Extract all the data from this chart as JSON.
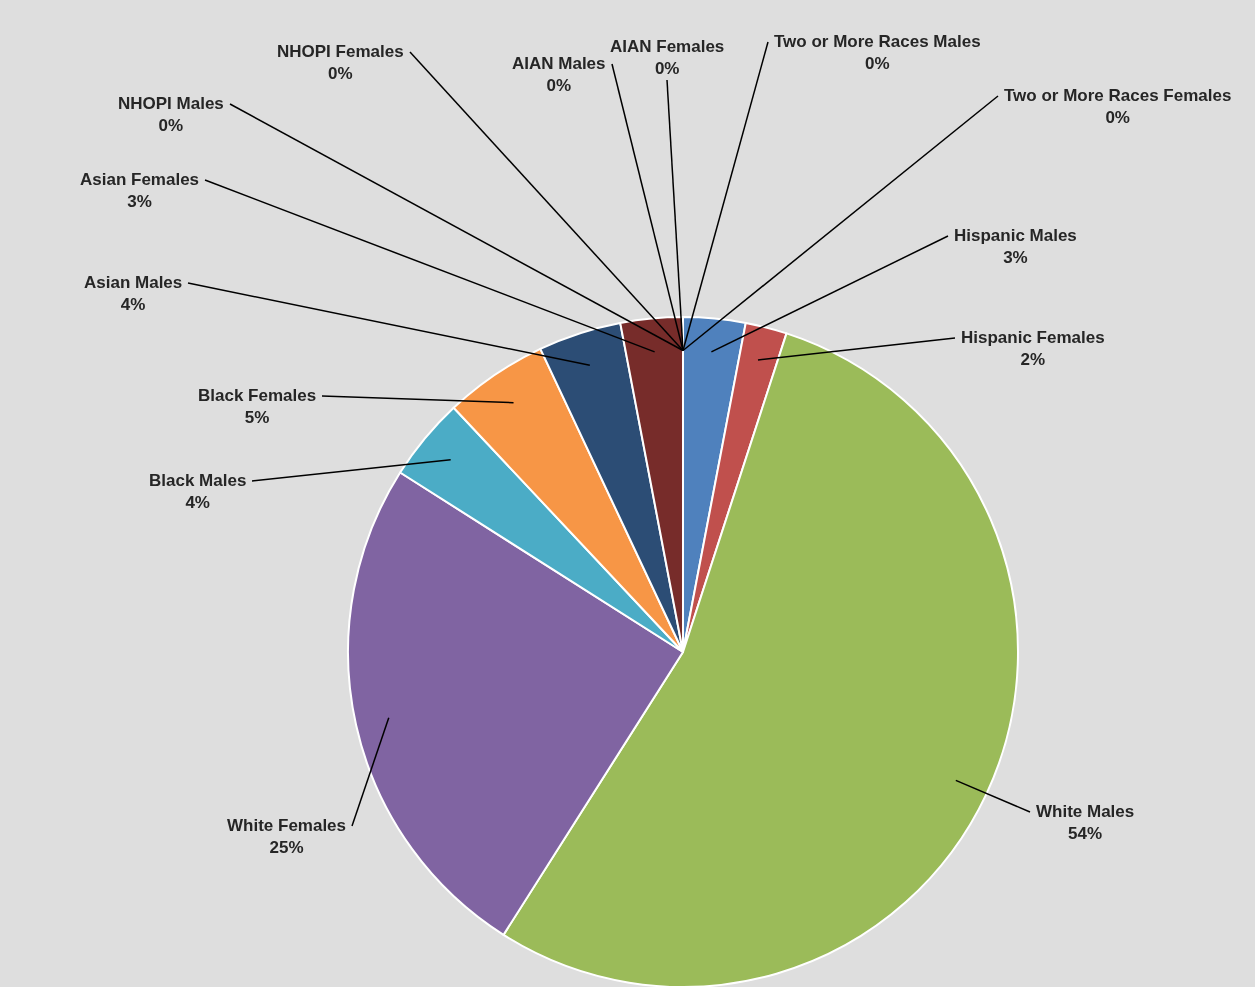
{
  "chart_data": {
    "type": "pie",
    "categories": [
      "Hispanic Males",
      "Hispanic Females",
      "White Males",
      "White Females",
      "Black Males",
      "Black Females",
      "Asian Males",
      "Asian Females",
      "NHOPI Males",
      "NHOPI Females",
      "AIAN Males",
      "AIAN Females",
      "Two or More Races Males",
      "Two or More Races Females"
    ],
    "values": [
      3,
      2,
      54,
      25,
      4,
      5,
      4,
      3,
      0,
      0,
      0,
      0,
      0,
      0
    ],
    "value_labels": [
      "3%",
      "2%",
      "54%",
      "25%",
      "4%",
      "5%",
      "4%",
      "3%",
      "0%",
      "0%",
      "0%",
      "0%",
      "0%",
      "0%"
    ],
    "colors": [
      "#4f81bd",
      "#c0504d",
      "#9bbb59",
      "#8064a2",
      "#4bacc6",
      "#f79646",
      "#2c4d75",
      "#772c2a",
      "#5f7530",
      "#4d3b62",
      "#276a7c",
      "#b65708",
      "#729aca",
      "#cd7371"
    ]
  }
}
